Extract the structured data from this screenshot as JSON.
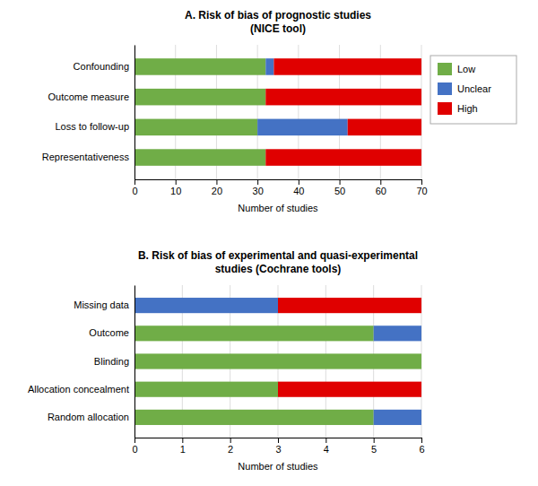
{
  "chart_data": [
    {
      "type": "bar",
      "orientation": "horizontal",
      "stacked": true,
      "grid": true,
      "legend": "right",
      "title": "A. Risk of bias of prognostic studies\n(NICE tool)",
      "categories": [
        "Representativeness",
        "Loss to follow-up",
        "Outcome measure",
        "Confounding"
      ],
      "series": [
        {
          "name": "Low",
          "color": "#70AD47",
          "values": [
            32,
            30,
            32,
            32
          ]
        },
        {
          "name": "Unclear",
          "color": "#4472C4",
          "values": [
            0,
            22,
            0,
            2
          ]
        },
        {
          "name": "High",
          "color": "#E00000",
          "values": [
            38,
            18,
            38,
            36
          ]
        }
      ],
      "xlim": [
        0,
        70
      ],
      "xticks": [
        0,
        10,
        20,
        30,
        40,
        50,
        60,
        70
      ],
      "xlabel": "Number of studies"
    },
    {
      "type": "bar",
      "orientation": "horizontal",
      "stacked": true,
      "grid": true,
      "title": "B. Risk of bias of experimental and quasi-experimental\nstudies (Cochrane tools)",
      "categories": [
        "Random allocation",
        "Allocation concealment",
        "Blinding",
        "Outcome",
        "Missing data"
      ],
      "series": [
        {
          "name": "Low",
          "color": "#70AD47",
          "values": [
            5,
            3,
            6,
            5,
            0
          ]
        },
        {
          "name": "Unclear",
          "color": "#4472C4",
          "values": [
            1,
            0,
            0,
            1,
            3
          ]
        },
        {
          "name": "High",
          "color": "#E00000",
          "values": [
            0,
            3,
            0,
            0,
            3
          ]
        }
      ],
      "xlim": [
        0,
        6
      ],
      "xticks": [
        0,
        1,
        2,
        3,
        4,
        5,
        6
      ],
      "xlabel": "Number of studies"
    }
  ]
}
